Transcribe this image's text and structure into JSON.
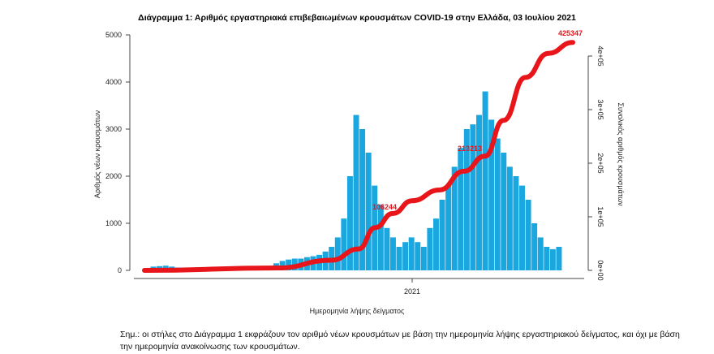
{
  "chart_data": {
    "type": "bar",
    "title": "Διάγραμμα 1: Αριθμός εργαστηριακά επιβεβαιωμένων κρουσμάτων COVID-19 στην Ελλάδα, 03 Ιουλίου 2021",
    "xlabel": "Ημερομηνία λήψης δείγματος",
    "ylabel": "Αριθμός νέων κρουσμάτων",
    "ylabel_right": "Συνολικός αριθμός κρουσμάτων",
    "ylim": [
      0,
      5000
    ],
    "ylim_right": [
      0,
      400000
    ],
    "yticks": [
      "0",
      "1000",
      "2000",
      "3000",
      "4000",
      "5000"
    ],
    "yticks_right": [
      "0e+00",
      "1e+05",
      "2e+05",
      "3e+05",
      "4e+05"
    ],
    "xticks": [
      {
        "date": "2021-01-01",
        "label": "2021"
      }
    ],
    "x_range": [
      "2020-03-02",
      "2021-07-03"
    ],
    "bar_color": "#1aa7e0",
    "line_color": "#e8151b",
    "series": [
      {
        "type": "bar",
        "week_start": "2020-03-02",
        "values": [
          40,
          80,
          90,
          100,
          80,
          60,
          40,
          30,
          20,
          20,
          15,
          15,
          20,
          20,
          25,
          30,
          30,
          40,
          50,
          60,
          70,
          150,
          200,
          230,
          250,
          250,
          280,
          300,
          330,
          400,
          500,
          700,
          1100,
          2000,
          3300,
          3000,
          2500,
          1800,
          1400,
          900,
          700,
          500,
          600,
          700,
          600,
          500,
          900,
          1100,
          1500,
          1800,
          2200,
          2600,
          3000,
          3100,
          3300,
          3800,
          3200,
          2800,
          2500,
          2200,
          2000,
          1800,
          1500,
          1000,
          700,
          500,
          450,
          500
        ]
      },
      {
        "type": "line",
        "points": [
          [
            "2020-03-02",
            0
          ],
          [
            "2020-08-01",
            4500
          ],
          [
            "2020-10-01",
            19000
          ],
          [
            "2020-11-01",
            40000
          ],
          [
            "2020-11-20",
            80000
          ],
          [
            "2020-12-10",
            106244
          ],
          [
            "2021-01-01",
            130000
          ],
          [
            "2021-02-01",
            150000
          ],
          [
            "2021-03-01",
            185000
          ],
          [
            "2021-03-25",
            213213
          ],
          [
            "2021-04-15",
            280000
          ],
          [
            "2021-05-10",
            360000
          ],
          [
            "2021-06-05",
            405000
          ],
          [
            "2021-07-03",
            425347
          ]
        ]
      }
    ],
    "annotations": [
      "106244",
      "213213",
      "425347"
    ]
  },
  "note": "Σημ.: οι στήλες στο Διάγραμμα 1 εκφράζουν τον αριθμό νέων κρουσμάτων με βάση την ημερομηνία λήψης εργαστηριακού δείγματος, και όχι με βάση την ημερομηνία ανακοίνωσης των κρουσμάτων."
}
